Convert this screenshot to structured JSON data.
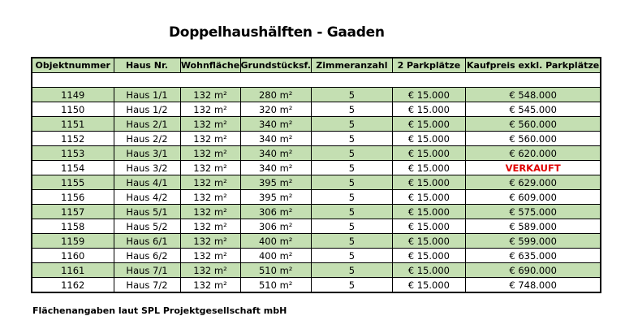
{
  "title": "Doppelhaushälften - Gaaden",
  "columns": [
    "Objektnummer",
    "Haus Nr.",
    "Wohnfläche",
    "Grundstücksf.",
    "Zimmeranzahl",
    "2 Parkplätze",
    "Kaufpreis exkl. Parkplätze"
  ],
  "rows": [
    [
      "1149",
      "Haus 1/1",
      "132 m²",
      "280 m²",
      "5",
      "€ 15.000",
      "€ 548.000"
    ],
    [
      "1150",
      "Haus 1/2",
      "132 m²",
      "320 m²",
      "5",
      "€ 15.000",
      "€ 545.000"
    ],
    [
      "1151",
      "Haus 2/1",
      "132 m²",
      "340 m²",
      "5",
      "€ 15.000",
      "€ 560.000"
    ],
    [
      "1152",
      "Haus 2/2",
      "132 m²",
      "340 m²",
      "5",
      "€ 15.000",
      "€ 560.000"
    ],
    [
      "1153",
      "Haus 3/1",
      "132 m²",
      "340 m²",
      "5",
      "€ 15.000",
      "€ 620.000"
    ],
    [
      "1154",
      "Haus 3/2",
      "132 m²",
      "340 m²",
      "5",
      "€ 15.000",
      "VERKAUFT"
    ],
    [
      "1155",
      "Haus 4/1",
      "132 m²",
      "395 m²",
      "5",
      "€ 15.000",
      "€ 629.000"
    ],
    [
      "1156",
      "Haus 4/2",
      "132 m²",
      "395 m²",
      "5",
      "€ 15.000",
      "€ 609.000"
    ],
    [
      "1157",
      "Haus 5/1",
      "132 m²",
      "306 m²",
      "5",
      "€ 15.000",
      "€ 575.000"
    ],
    [
      "1158",
      "Haus 5/2",
      "132 m²",
      "306 m²",
      "5",
      "€ 15.000",
      "€ 589.000"
    ],
    [
      "1159",
      "Haus 6/1",
      "132 m²",
      "400 m²",
      "5",
      "€ 15.000",
      "€ 599.000"
    ],
    [
      "1160",
      "Haus 6/2",
      "132 m²",
      "400 m²",
      "5",
      "€ 15.000",
      "€ 635.000"
    ],
    [
      "1161",
      "Haus 7/1",
      "132 m²",
      "510 m²",
      "5",
      "€ 15.000",
      "€ 690.000"
    ],
    [
      "1162",
      "Haus 7/2",
      "132 m²",
      "510 m²",
      "5",
      "€ 15.000",
      "€ 748.000"
    ]
  ],
  "footer": "Flächenangaben laut SPL Projektgesellschaft mbH",
  "colors": {
    "row_green": "#c4dfb2",
    "sold_red": "#e00000"
  }
}
